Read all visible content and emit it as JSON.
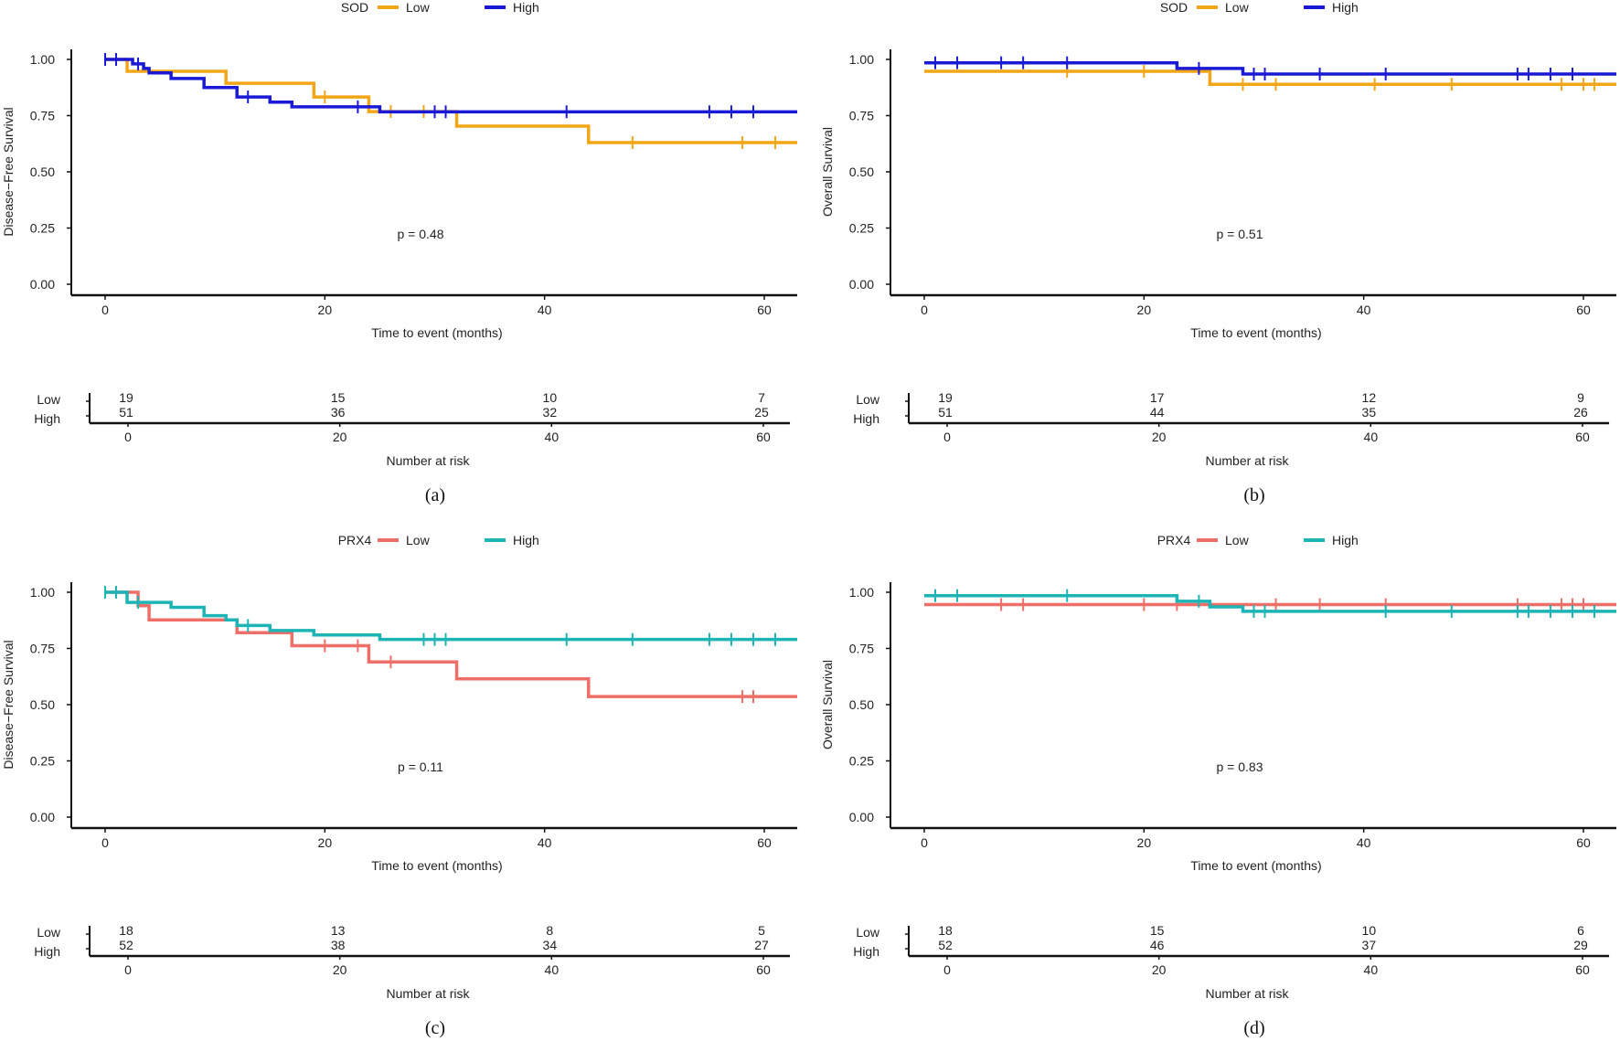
{
  "chart_data": [
    {
      "type": "line",
      "caption": "(a)",
      "legend_title": "SOD",
      "ylabel": "Disease−Free Survival",
      "xlabel": "Time to event (months)",
      "p_value": "p = 0.48",
      "xlim": [
        -3,
        63
      ],
      "ylim": [
        0,
        1
      ],
      "xticks": [
        0,
        20,
        40,
        60
      ],
      "xtick_labels": [
        "0",
        "20",
        "40",
        "60"
      ],
      "yticks": [
        0,
        0.25,
        0.5,
        0.75,
        1
      ],
      "ytick_labels": [
        "0.00",
        "0.25",
        "0.50",
        "0.75",
        "1.00"
      ],
      "groups": [
        {
          "name": "Low",
          "color": "#F2A516",
          "steps": [
            [
              0,
              1.0
            ],
            [
              2,
              0.947
            ],
            [
              11,
              0.894
            ],
            [
              19,
              0.833
            ],
            [
              24,
              0.768
            ],
            [
              32,
              0.703
            ],
            [
              44,
              0.63
            ]
          ],
          "censored": [
            20,
            26,
            29,
            48,
            58,
            61
          ]
        },
        {
          "name": "High",
          "color": "#1A1AD6",
          "steps": [
            [
              0,
              1.0
            ],
            [
              2.5,
              0.98
            ],
            [
              3.5,
              0.96
            ],
            [
              4,
              0.94
            ],
            [
              6,
              0.915
            ],
            [
              9,
              0.875
            ],
            [
              12,
              0.833
            ],
            [
              15,
              0.81
            ],
            [
              17,
              0.789
            ],
            [
              25,
              0.767
            ]
          ],
          "censored": [
            0,
            1,
            3,
            13,
            23,
            30,
            31,
            42,
            55,
            57,
            59
          ]
        }
      ],
      "risk_table": {
        "title": "Number at risk",
        "times": [
          0,
          20,
          40,
          60
        ],
        "time_labels": [
          "0",
          "20",
          "40",
          "60"
        ],
        "rows": [
          {
            "label": "Low",
            "values": [
              "19",
              "15",
              "10",
              "7"
            ]
          },
          {
            "label": "High",
            "values": [
              "51",
              "36",
              "32",
              "25"
            ]
          }
        ]
      }
    },
    {
      "type": "line",
      "caption": "(b)",
      "legend_title": "SOD",
      "ylabel": "Overall Survival",
      "xlabel": "Time to event (months)",
      "p_value": "p = 0.51",
      "xlim": [
        -3,
        63
      ],
      "ylim": [
        0,
        1
      ],
      "xticks": [
        0,
        20,
        40,
        60
      ],
      "xtick_labels": [
        "0",
        "20",
        "40",
        "60"
      ],
      "yticks": [
        0,
        0.25,
        0.5,
        0.75,
        1
      ],
      "ytick_labels": [
        "0.00",
        "0.25",
        "0.50",
        "0.75",
        "1.00"
      ],
      "groups": [
        {
          "name": "Low",
          "color": "#F2A516",
          "steps": [
            [
              0,
              0.947
            ],
            [
              26,
              0.889
            ]
          ],
          "censored": [
            13,
            20,
            29,
            32,
            41,
            48,
            58,
            60,
            61
          ]
        },
        {
          "name": "High",
          "color": "#1A1AD6",
          "steps": [
            [
              0,
              0.985
            ],
            [
              23,
              0.96
            ],
            [
              29,
              0.935
            ]
          ],
          "censored": [
            1,
            3,
            7,
            9,
            13,
            25,
            30,
            31,
            36,
            42,
            54,
            55,
            57,
            59
          ]
        }
      ],
      "risk_table": {
        "title": "Number at risk",
        "times": [
          0,
          20,
          40,
          60
        ],
        "time_labels": [
          "0",
          "20",
          "40",
          "60"
        ],
        "rows": [
          {
            "label": "Low",
            "values": [
              "19",
              "17",
              "12",
              "9"
            ]
          },
          {
            "label": "High",
            "values": [
              "51",
              "44",
              "35",
              "26"
            ]
          }
        ]
      }
    },
    {
      "type": "line",
      "caption": "(c)",
      "legend_title": "PRX4",
      "ylabel": "Disease−Free Survival",
      "xlabel": "Time to event (months)",
      "p_value": "p = 0.11",
      "xlim": [
        -3,
        63
      ],
      "ylim": [
        0,
        1
      ],
      "xticks": [
        0,
        20,
        40,
        60
      ],
      "xtick_labels": [
        "0",
        "20",
        "40",
        "60"
      ],
      "yticks": [
        0,
        0.25,
        0.5,
        0.75,
        1
      ],
      "ytick_labels": [
        "0.00",
        "0.25",
        "0.50",
        "0.75",
        "1.00"
      ],
      "groups": [
        {
          "name": "Low",
          "color": "#EF6F68",
          "steps": [
            [
              0,
              1.0
            ],
            [
              3,
              0.94
            ],
            [
              4,
              0.877
            ],
            [
              12,
              0.82
            ],
            [
              17,
              0.762
            ],
            [
              24,
              0.69
            ],
            [
              32,
              0.615
            ],
            [
              44,
              0.536
            ]
          ],
          "censored": [
            20,
            23,
            26,
            58,
            59
          ]
        },
        {
          "name": "High",
          "color": "#1CB4B4",
          "steps": [
            [
              0,
              1.0
            ],
            [
              2,
              0.955
            ],
            [
              6,
              0.933
            ],
            [
              9,
              0.896
            ],
            [
              11,
              0.877
            ],
            [
              12,
              0.852
            ],
            [
              15,
              0.83
            ],
            [
              19,
              0.81
            ],
            [
              25,
              0.79
            ]
          ],
          "censored": [
            0,
            1,
            3,
            13,
            29,
            30,
            31,
            42,
            48,
            55,
            57,
            59,
            61
          ]
        }
      ],
      "risk_table": {
        "title": "Number at risk",
        "times": [
          0,
          20,
          40,
          60
        ],
        "time_labels": [
          "0",
          "20",
          "40",
          "60"
        ],
        "rows": [
          {
            "label": "Low",
            "values": [
              "18",
              "13",
              "8",
              "5"
            ]
          },
          {
            "label": "High",
            "values": [
              "52",
              "38",
              "34",
              "27"
            ]
          }
        ]
      }
    },
    {
      "type": "line",
      "caption": "(d)",
      "legend_title": "PRX4",
      "ylabel": "Overall Survival",
      "xlabel": "Time to event (months)",
      "p_value": "p = 0.83",
      "xlim": [
        -3,
        63
      ],
      "ylim": [
        0,
        1
      ],
      "xticks": [
        0,
        20,
        40,
        60
      ],
      "xtick_labels": [
        "0",
        "20",
        "40",
        "60"
      ],
      "yticks": [
        0,
        0.25,
        0.5,
        0.75,
        1
      ],
      "ytick_labels": [
        "0.00",
        "0.25",
        "0.50",
        "0.75",
        "1.00"
      ],
      "groups": [
        {
          "name": "Low",
          "color": "#EF6F68",
          "steps": [
            [
              0,
              0.945
            ]
          ],
          "censored": [
            7,
            9,
            20,
            23,
            32,
            36,
            42,
            54,
            58,
            59,
            60
          ]
        },
        {
          "name": "High",
          "color": "#1CB4B4",
          "steps": [
            [
              0,
              0.985
            ],
            [
              23,
              0.96
            ],
            [
              26,
              0.935
            ],
            [
              29,
              0.915
            ]
          ],
          "censored": [
            1,
            3,
            13,
            25,
            30,
            31,
            42,
            48,
            54,
            55,
            57,
            59,
            61
          ]
        }
      ],
      "risk_table": {
        "title": "Number at risk",
        "times": [
          0,
          20,
          40,
          60
        ],
        "time_labels": [
          "0",
          "20",
          "40",
          "60"
        ],
        "rows": [
          {
            "label": "Low",
            "values": [
              "18",
              "15",
              "10",
              "6"
            ]
          },
          {
            "label": "High",
            "values": [
              "52",
              "46",
              "37",
              "29"
            ]
          }
        ]
      }
    }
  ]
}
